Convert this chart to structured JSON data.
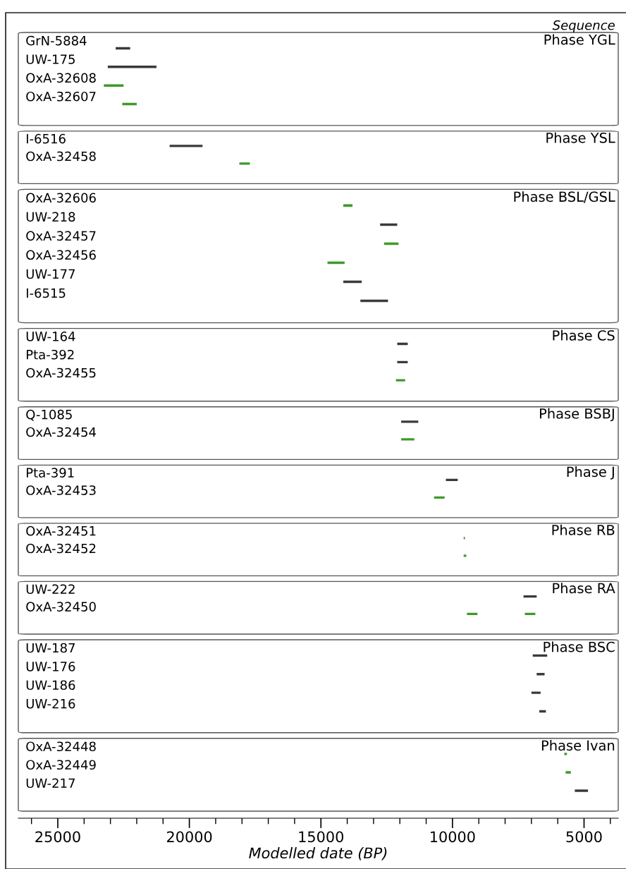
{
  "chart_data": [
    {
      "type": "bar",
      "orientation": "horizontal",
      "title": "Phase YGL",
      "annotations": [
        "Sequence"
      ],
      "xlim": [
        26500,
        3700
      ],
      "tick_labels": false,
      "categories": [
        "GrN-5884",
        "UW-175",
        "OxA-32608",
        "OxA-32607"
      ],
      "series": [
        {
          "colors": [
            "#3a3a3a",
            "#3a3a3a",
            "#3d9a2a",
            "#3d9a2a"
          ],
          "base": [
            22250,
            21250,
            22500,
            22000
          ],
          "values": [
            550,
            1850,
            750,
            550
          ]
        }
      ]
    },
    {
      "type": "bar",
      "orientation": "horizontal",
      "title": "Phase YSL",
      "xlim": [
        26500,
        3700
      ],
      "tick_labels": false,
      "categories": [
        "I-6516",
        "OxA-32458"
      ],
      "series": [
        {
          "colors": [
            "#3a3a3a",
            "#3d9a2a"
          ],
          "base": [
            19500,
            17700
          ],
          "values": [
            1250,
            400
          ]
        }
      ]
    },
    {
      "type": "bar",
      "orientation": "horizontal",
      "title": "Phase BSL/GSL",
      "xlim": [
        26500,
        3700
      ],
      "tick_labels": false,
      "categories": [
        "OxA-32606",
        "UW-218",
        "OxA-32457",
        "OxA-32456",
        "UW-177",
        "I-6515"
      ],
      "series": [
        {
          "colors": [
            "#3d9a2a",
            "#3a3a3a",
            "#3d9a2a",
            "#3d9a2a",
            "#3a3a3a",
            "#3a3a3a"
          ],
          "base": [
            13800,
            12100,
            12050,
            14100,
            13450,
            12450
          ],
          "values": [
            350,
            650,
            550,
            650,
            700,
            1050
          ]
        }
      ]
    },
    {
      "type": "bar",
      "orientation": "horizontal",
      "title": "Phase CS",
      "xlim": [
        26500,
        3700
      ],
      "tick_labels": false,
      "categories": [
        "UW-164",
        "Pta-392",
        "OxA-32455"
      ],
      "series": [
        {
          "colors": [
            "#3a3a3a",
            "#3a3a3a",
            "#3d9a2a"
          ],
          "base": [
            11700,
            11700,
            11800
          ],
          "values": [
            400,
            400,
            350
          ]
        }
      ]
    },
    {
      "type": "bar",
      "orientation": "horizontal",
      "title": "Phase BSBJ",
      "xlim": [
        26500,
        3700
      ],
      "tick_labels": false,
      "categories": [
        "Q-1085",
        "OxA-32454"
      ],
      "series": [
        {
          "colors": [
            "#3a3a3a",
            "#3d9a2a"
          ],
          "base": [
            11300,
            11450
          ],
          "values": [
            650,
            500
          ]
        }
      ]
    },
    {
      "type": "bar",
      "orientation": "horizontal",
      "title": "Phase J",
      "xlim": [
        26500,
        3700
      ],
      "tick_labels": false,
      "categories": [
        "Pta-391",
        "OxA-32453"
      ],
      "series": [
        {
          "colors": [
            "#3a3a3a",
            "#3d9a2a"
          ],
          "base": [
            9800,
            10300
          ],
          "values": [
            450,
            400
          ]
        }
      ]
    },
    {
      "type": "bar",
      "orientation": "horizontal",
      "title": "Phase RB",
      "xlim": [
        26500,
        3700
      ],
      "tick_labels": false,
      "categories": [
        "OxA-32451",
        "OxA-32452"
      ],
      "series": [
        {
          "colors": [
            "#3d9a2a",
            "#3d9a2a"
          ],
          "base": [
            9525,
            9475
          ],
          "values": [
            50,
            100
          ]
        }
      ]
    },
    {
      "type": "bar",
      "orientation": "horizontal",
      "title": "Phase RA",
      "xlim": [
        26500,
        3700
      ],
      "tick_labels": false,
      "categories": [
        "UW-222",
        "OxA-32450"
      ],
      "series": [
        {
          "colors": [
            "#3a3a3a",
            "#3d9a2a"
          ],
          "base": [
            6800,
            9050
          ],
          "values": [
            500,
            400
          ]
        },
        {
          "color": "#3d9a2a",
          "base": [
            null,
            6850
          ],
          "values": [
            null,
            400
          ]
        }
      ]
    },
    {
      "type": "bar",
      "orientation": "horizontal",
      "title": "Phase BSC",
      "xlim": [
        26500,
        3700
      ],
      "tick_labels": false,
      "categories": [
        "UW-187",
        "UW-176",
        "UW-186",
        "UW-216"
      ],
      "series": [
        {
          "colors": [
            "#3a3a3a",
            "#3a3a3a",
            "#3a3a3a",
            "#3a3a3a"
          ],
          "base": [
            6400,
            6500,
            6650,
            6450
          ],
          "values": [
            550,
            300,
            350,
            250
          ]
        }
      ]
    },
    {
      "type": "bar",
      "orientation": "horizontal",
      "title": "Phase Ivan",
      "xlabel": "Modelled date (BP)",
      "xlim": [
        26500,
        3700
      ],
      "tick_labels": "x",
      "xticks": [
        {
          "value": 26000,
          "label": null
        },
        25000,
        {
          "value": 24000,
          "label": null
        },
        {
          "value": 23000,
          "label": null
        },
        {
          "value": 22000,
          "label": null
        },
        {
          "value": 21000,
          "label": null
        },
        20000,
        {
          "value": 19000,
          "label": null
        },
        {
          "value": 18000,
          "label": null
        },
        {
          "value": 17000,
          "label": null
        },
        {
          "value": 16000,
          "label": null
        },
        15000,
        {
          "value": 14000,
          "label": null
        },
        {
          "value": 13000,
          "label": null
        },
        {
          "value": 12000,
          "label": null
        },
        {
          "value": 11000,
          "label": null
        },
        10000,
        {
          "value": 9000,
          "label": null
        },
        {
          "value": 8000,
          "label": null
        },
        {
          "value": 7000,
          "label": null
        },
        {
          "value": 6000,
          "label": null
        },
        5000,
        {
          "value": 4000,
          "label": null
        }
      ],
      "categories": [
        "OxA-32448",
        "OxA-32449",
        "UW-217"
      ],
      "series": [
        {
          "colors": [
            "#3d9a2a",
            "#3d9a2a",
            "#3a3a3a"
          ],
          "base": [
            5650,
            5500,
            4850
          ],
          "values": [
            100,
            200,
            500
          ]
        }
      ]
    }
  ]
}
